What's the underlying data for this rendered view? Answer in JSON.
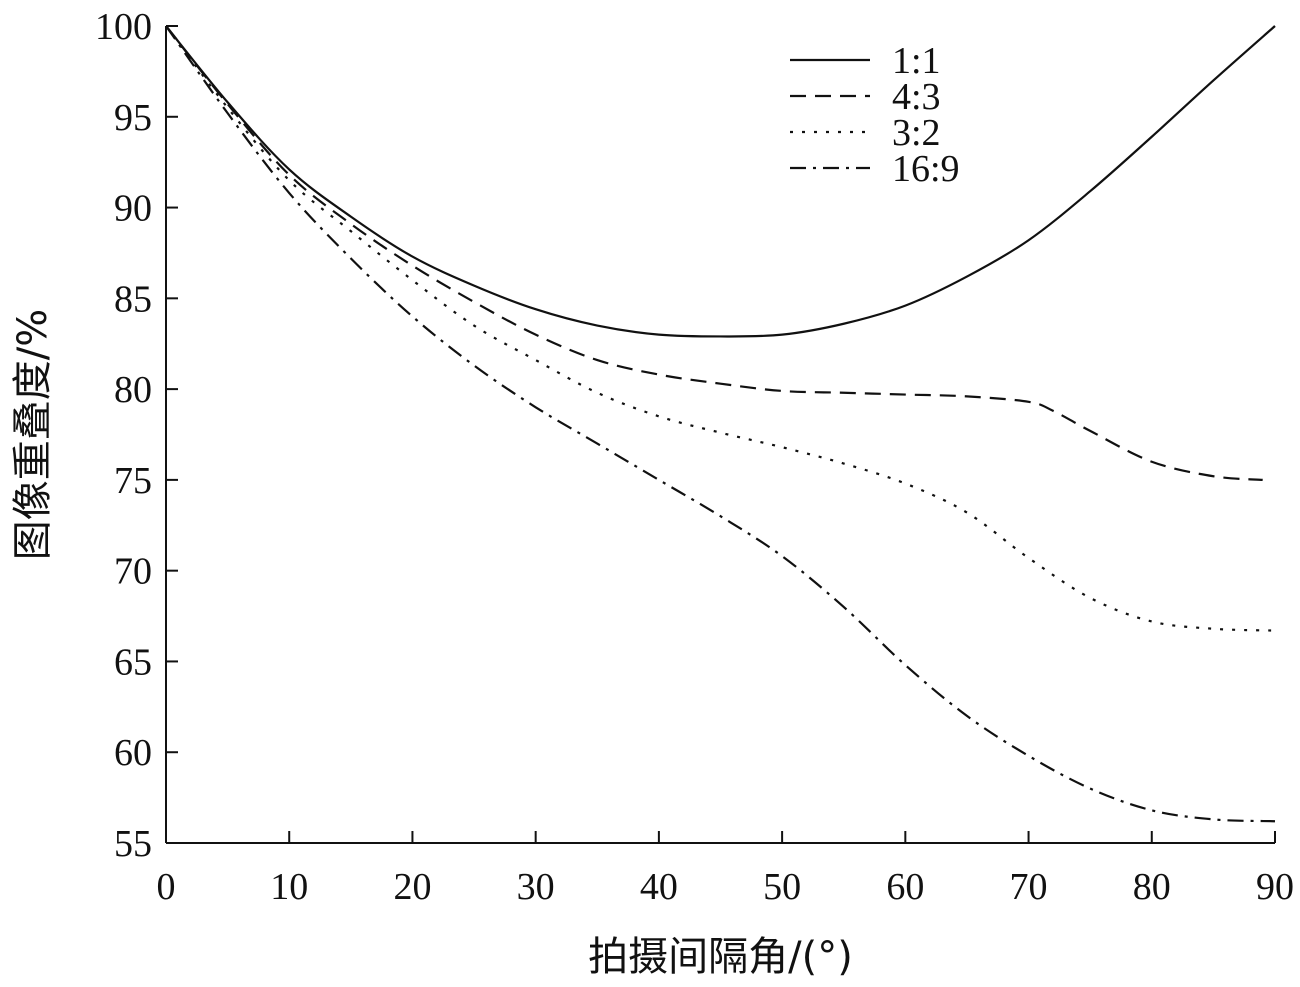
{
  "chart_data": {
    "type": "line",
    "xlabel": "拍摄间隔角/(°)",
    "ylabel": "图像重叠度/%",
    "xlim": [
      0,
      90
    ],
    "ylim": [
      55,
      100
    ],
    "xticks": [
      0,
      10,
      20,
      30,
      40,
      50,
      60,
      70,
      80,
      90
    ],
    "yticks": [
      55,
      60,
      65,
      70,
      75,
      80,
      85,
      90,
      95,
      100
    ],
    "grid": false,
    "legend_position": "top-right",
    "line_color": "#111111",
    "series": [
      {
        "name": "1:1",
        "dash": "solid",
        "x": [
          0,
          5,
          10,
          15,
          20,
          25,
          30,
          35,
          40,
          45,
          50,
          55,
          60,
          65,
          70,
          75,
          80,
          85,
          90
        ],
        "y": [
          100,
          95.8,
          92.1,
          89.5,
          87.3,
          85.7,
          84.4,
          83.5,
          83.0,
          82.9,
          83.0,
          83.6,
          84.6,
          86.2,
          88.2,
          90.9,
          93.9,
          97.0,
          100
        ]
      },
      {
        "name": "4:3",
        "dash": "dashed",
        "x": [
          0,
          5,
          10,
          15,
          20,
          25,
          30,
          35,
          40,
          45,
          50,
          55,
          60,
          65,
          70,
          72,
          75,
          80,
          85,
          89
        ],
        "y": [
          100,
          95.7,
          91.8,
          89.1,
          86.8,
          84.8,
          83.0,
          81.6,
          80.8,
          80.3,
          79.9,
          79.8,
          79.7,
          79.6,
          79.3,
          78.8,
          77.7,
          76.0,
          75.2,
          75.0
        ]
      },
      {
        "name": "3:2",
        "dash": "dotted",
        "x": [
          0,
          5,
          10,
          15,
          20,
          25,
          30,
          35,
          40,
          45,
          50,
          55,
          60,
          65,
          70,
          75,
          80,
          85,
          90
        ],
        "y": [
          100,
          95.5,
          91.5,
          88.7,
          86.0,
          83.5,
          81.6,
          79.8,
          78.5,
          77.6,
          76.8,
          75.9,
          74.8,
          73.2,
          70.7,
          68.5,
          67.2,
          66.8,
          66.7
        ]
      },
      {
        "name": "16:9",
        "dash": "dashdot",
        "x": [
          0,
          5,
          10,
          15,
          20,
          25,
          30,
          35,
          40,
          45,
          50,
          55,
          60,
          65,
          70,
          75,
          80,
          85,
          90
        ],
        "y": [
          100,
          95.2,
          90.8,
          87.2,
          84.0,
          81.3,
          79.0,
          77.0,
          75.0,
          73.0,
          70.8,
          68.0,
          64.8,
          62.0,
          59.8,
          58.0,
          56.8,
          56.3,
          56.2
        ]
      }
    ]
  }
}
